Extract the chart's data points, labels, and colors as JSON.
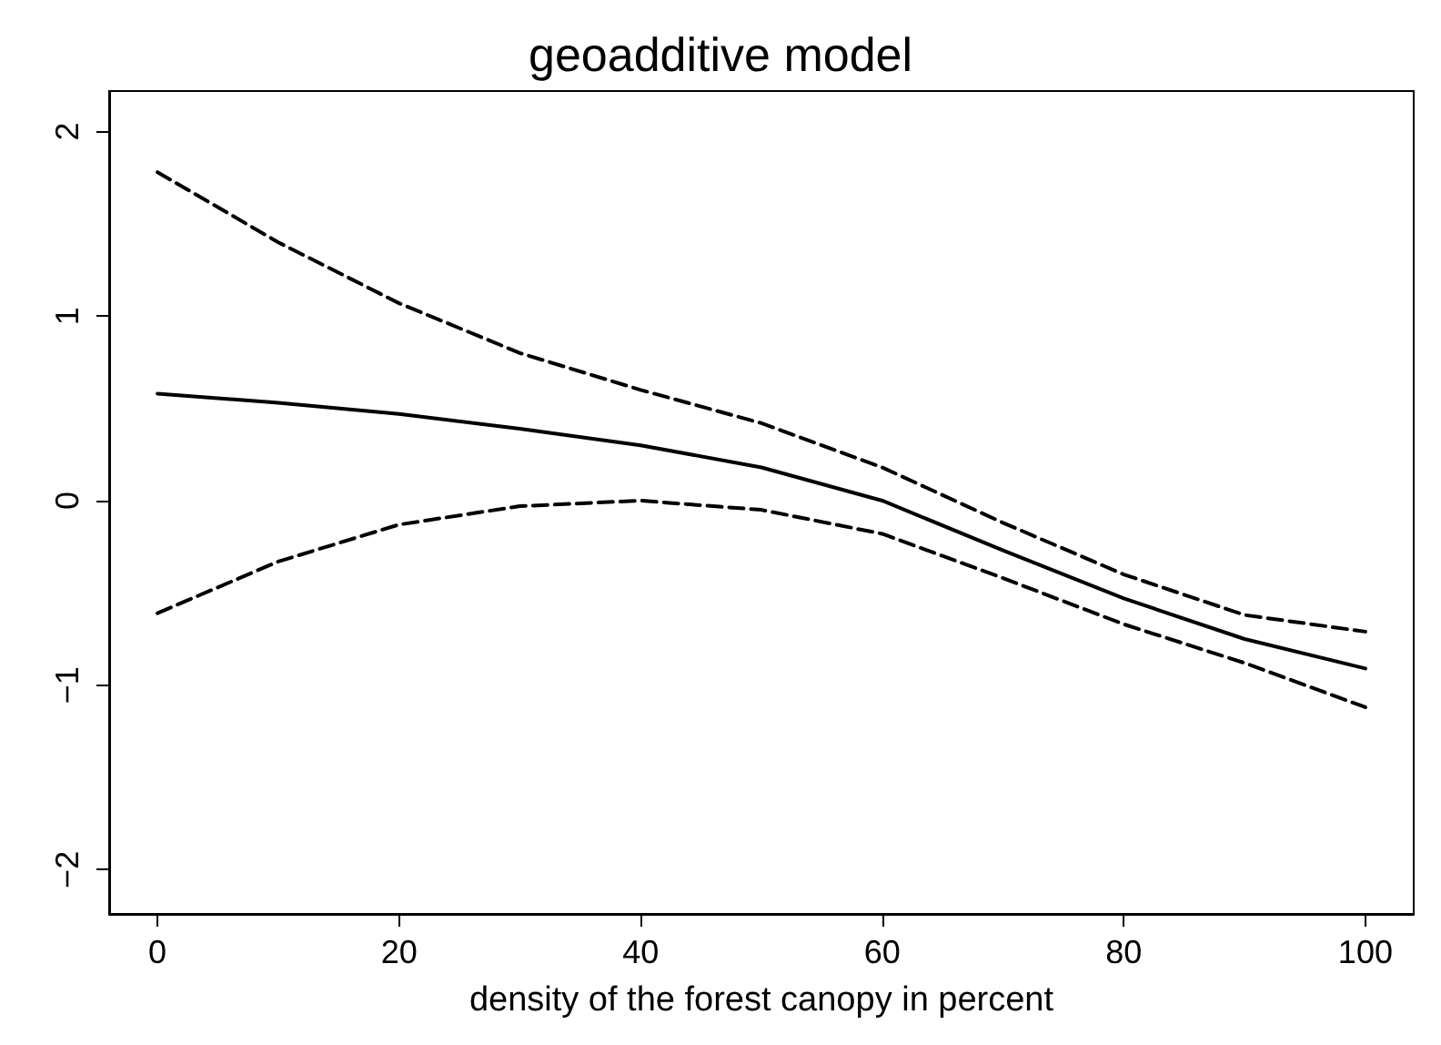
{
  "chart_data": {
    "type": "line",
    "title": "geoadditive model",
    "xlabel": "density of the forest canopy in percent",
    "x": [
      0,
      10,
      20,
      30,
      40,
      50,
      60,
      70,
      80,
      90,
      100
    ],
    "series": [
      {
        "color": "#000000",
        "line_style": "solid",
        "values": [
          0.58,
          0.53,
          0.47,
          0.39,
          0.3,
          0.18,
          0.0,
          -0.27,
          -0.53,
          -0.75,
          -0.91
        ]
      },
      {
        "color": "#000000",
        "line_style": "dashed",
        "values": [
          1.78,
          1.4,
          1.07,
          0.8,
          0.6,
          0.42,
          0.18,
          -0.12,
          -0.4,
          -0.62,
          -0.71
        ]
      },
      {
        "color": "#000000",
        "line_style": "dashed",
        "values": [
          -0.61,
          -0.33,
          -0.13,
          -0.03,
          0.0,
          -0.05,
          -0.18,
          -0.42,
          -0.67,
          -0.88,
          -1.12
        ]
      }
    ],
    "xlim": [
      -4,
      104
    ],
    "ylim": [
      -2.24,
      2.22
    ],
    "xticks": [
      0,
      20,
      40,
      60,
      80,
      100
    ],
    "yticks": [
      -2,
      -1,
      0,
      1,
      2
    ],
    "grid": false,
    "marker": "none"
  }
}
